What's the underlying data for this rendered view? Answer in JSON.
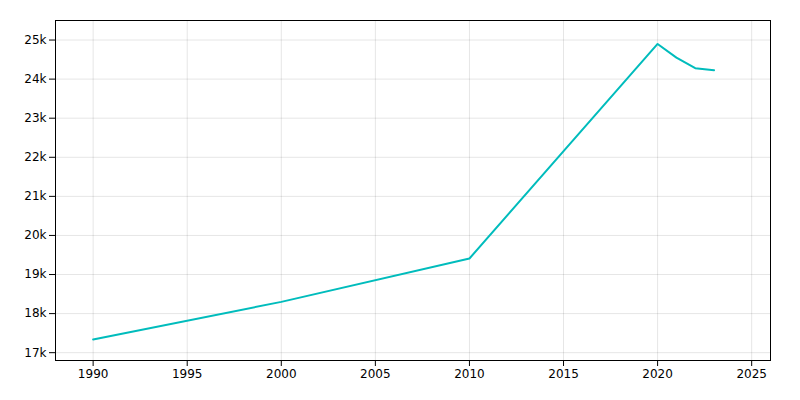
{
  "chart_data": {
    "type": "line",
    "x": [
      1990,
      2000,
      2010,
      2020,
      2021,
      2022,
      2023
    ],
    "values": [
      17337,
      18300,
      19410,
      24900,
      24550,
      24280,
      24230
    ],
    "color": "#00BCBC",
    "xlim": [
      1988,
      2026
    ],
    "xticks": [
      1990,
      1995,
      2000,
      2005,
      2010,
      2015,
      2020,
      2025
    ],
    "ylim": [
      16800,
      25500
    ],
    "yticks": [
      {
        "value": 17000,
        "label": "17k"
      },
      {
        "value": 18000,
        "label": "18k"
      },
      {
        "value": 19000,
        "label": "19k"
      },
      {
        "value": 20000,
        "label": "20k"
      },
      {
        "value": 21000,
        "label": "21k"
      },
      {
        "value": 22000,
        "label": "22k"
      },
      {
        "value": 23000,
        "label": "23k"
      },
      {
        "value": 24000,
        "label": "24k"
      },
      {
        "value": 25000,
        "label": "25k"
      }
    ],
    "grid": true
  }
}
